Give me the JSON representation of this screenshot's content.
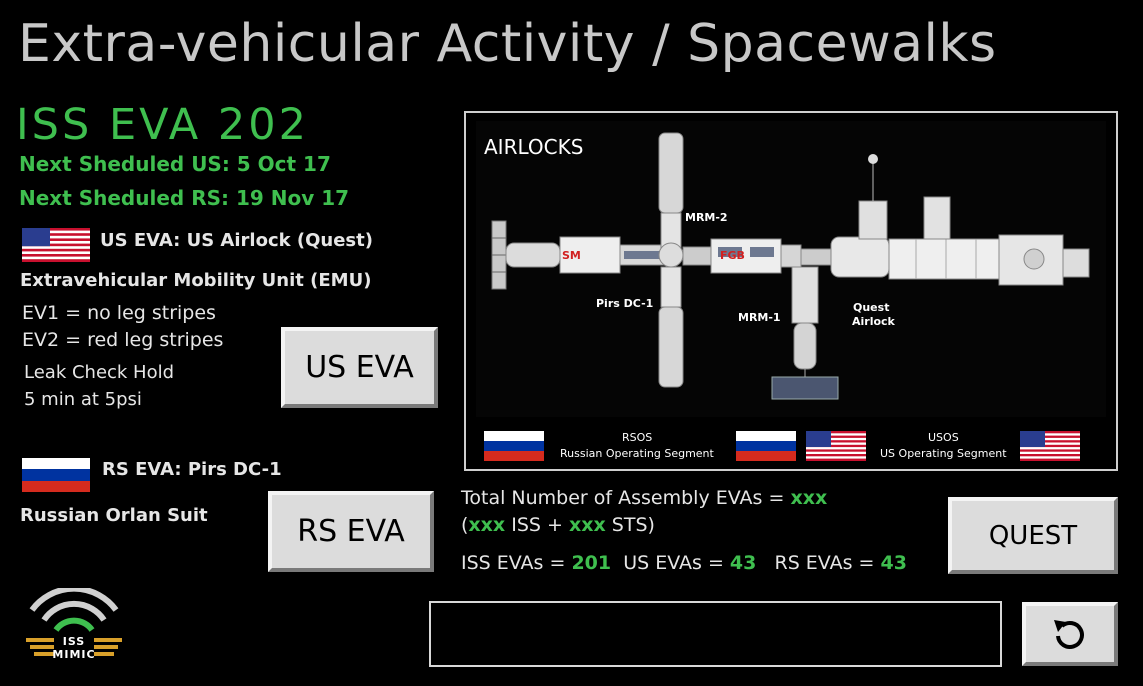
{
  "header": {
    "title": "Extra-vehicular Activity / Spacewalks"
  },
  "eva": {
    "number_label": "ISS EVA 202",
    "next_us": "Next Sheduled US: 5 Oct 17",
    "next_rs": "Next Sheduled RS: 19 Nov 17"
  },
  "us": {
    "airlock": "US EVA: US Airlock (Quest)",
    "suit": "Extravehicular Mobility Unit (EMU)",
    "ev1": "EV1 = no leg stripes",
    "ev2": "EV2 = red leg stripes",
    "leak1": "Leak Check Hold",
    "leak2": "5 min at 5psi",
    "button": "US EVA"
  },
  "rs": {
    "airlock": "RS EVA: Pirs DC-1",
    "suit": "Russian Orlan Suit",
    "button": "RS EVA"
  },
  "map": {
    "title": "AIRLOCKS",
    "labels": {
      "sm": "SM",
      "fgb": "FGB",
      "mrm2": "MRM-2",
      "mrm1": "MRM-1",
      "pirs": "Pirs DC-1",
      "quest": "Quest",
      "airlock": "Airlock"
    },
    "legend": {
      "rsos_short": "RSOS",
      "rsos_long": "Russian Operating Segment",
      "usos_short": "USOS",
      "usos_long": "US Operating Segment"
    }
  },
  "stats": {
    "total_prefix": "Total Number of Assembly EVAs = ",
    "total_value": "xxx",
    "paren_open": "(",
    "iss_value": "xxx",
    "iss_text": " ISS + ",
    "sts_value": "xxx",
    "sts_text": " STS)",
    "iss_label": "ISS EVAs = ",
    "iss_evas": "201",
    "us_label": "US EVAs = ",
    "us_evas": "43",
    "rs_label": "RS EVAs = ",
    "rs_evas": "43"
  },
  "buttons": {
    "quest": "QUEST",
    "back_icon": "rotate-left-icon"
  },
  "logo": {
    "text": "ISS MIMIC"
  },
  "colors": {
    "accent_green": "#3fbf4f",
    "button_gray": "#dcdcdc",
    "title_gray": "#c8c8c8"
  }
}
